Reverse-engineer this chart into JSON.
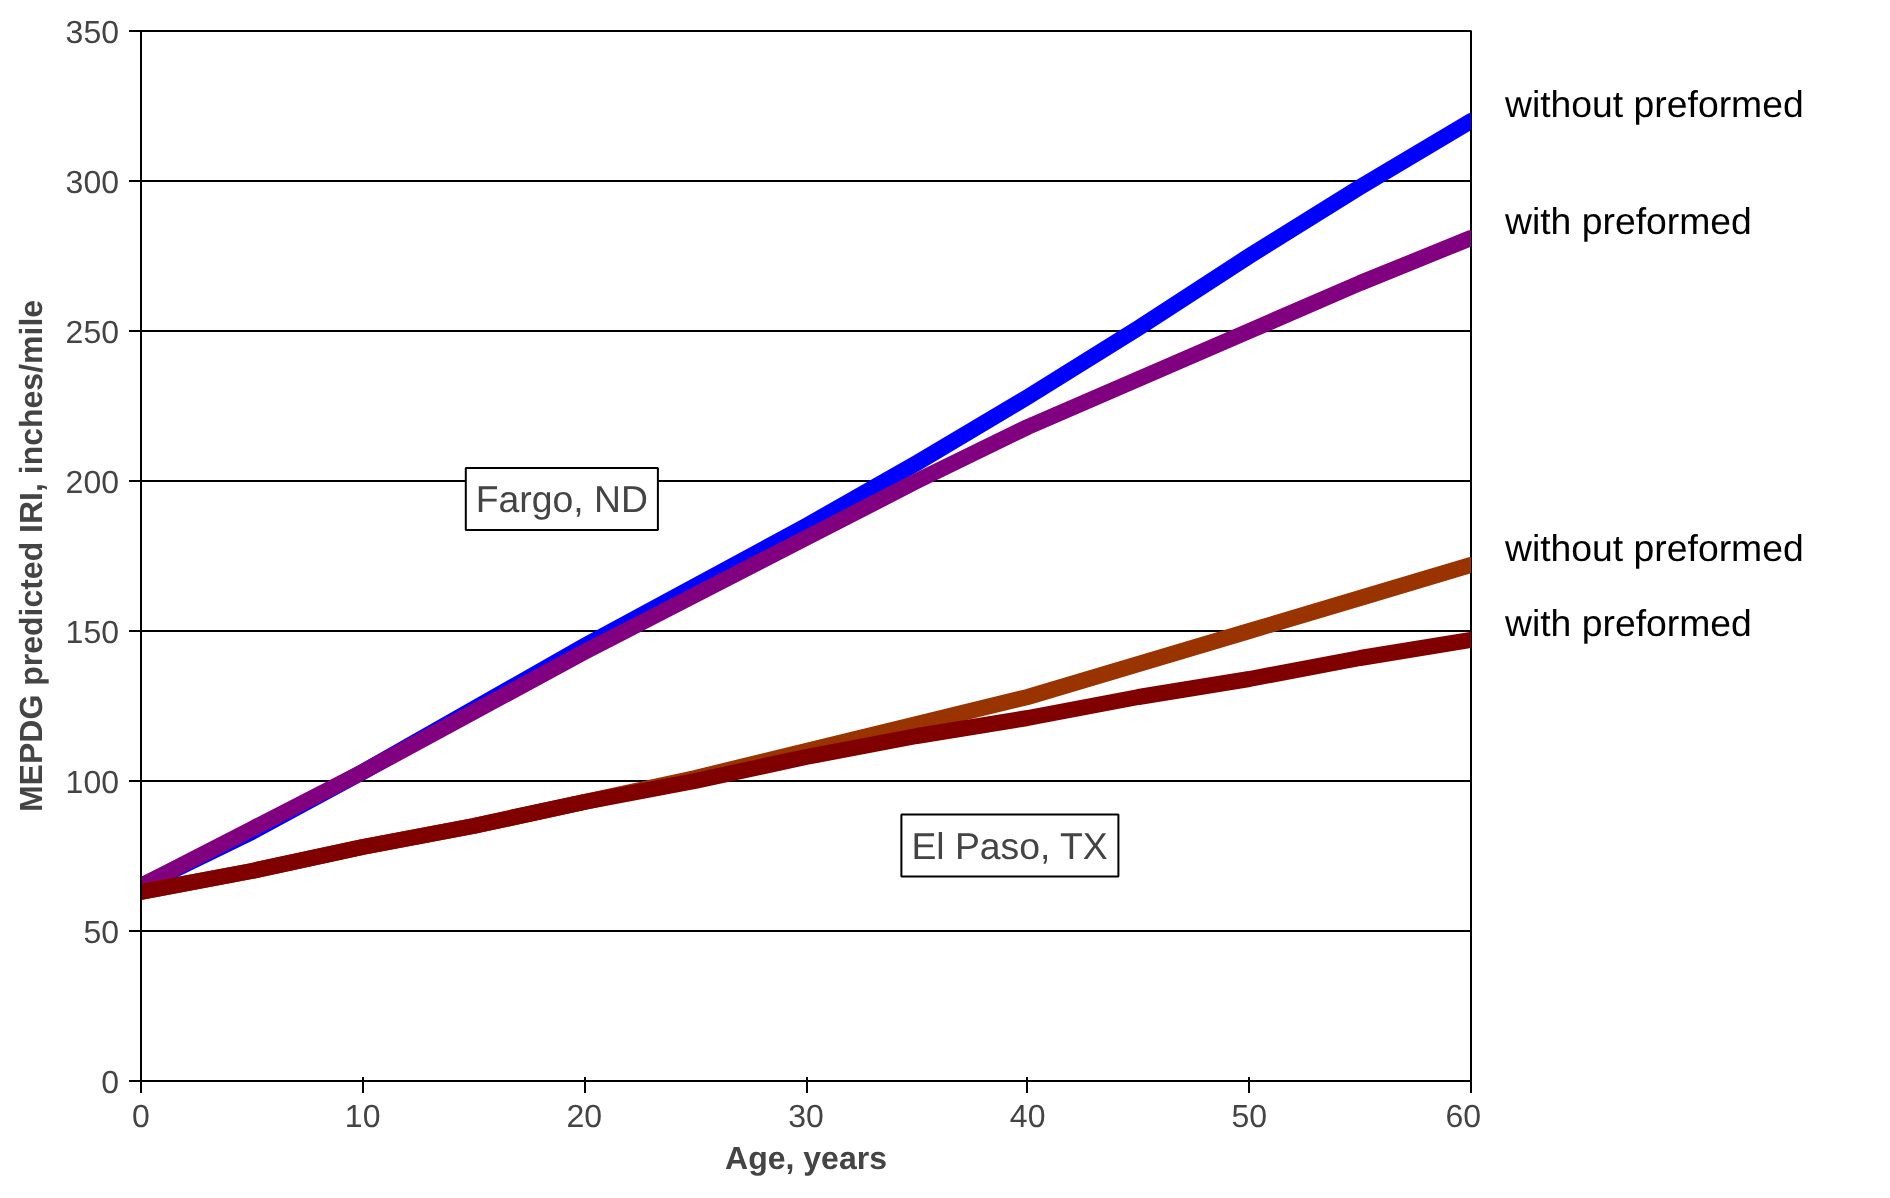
{
  "chart_data": {
    "type": "line",
    "xlabel": "Age, years",
    "ylabel": "MEPDG predicted IRI, inches/mile",
    "x": [
      0,
      5,
      10,
      15,
      20,
      25,
      30,
      35,
      40,
      45,
      50,
      55,
      60
    ],
    "series": [
      {
        "name": "without preformed",
        "color": "#0000ff",
        "values": [
          65,
          83,
          103,
          124,
          145,
          165,
          185,
          206,
          228,
          251,
          275,
          298,
          320
        ]
      },
      {
        "name": "with preformed",
        "color": "#800080",
        "values": [
          65,
          84,
          103,
          123,
          143,
          162,
          181,
          200,
          218,
          234,
          250,
          266,
          281
        ]
      },
      {
        "name": "without preformed",
        "color": "#993300",
        "values": [
          63,
          70,
          78,
          85,
          93,
          101,
          110,
          119,
          128,
          139,
          150,
          161,
          172
        ]
      },
      {
        "name": "with preformed",
        "color": "#800000",
        "values": [
          63,
          70,
          78,
          85,
          93,
          100,
          108,
          115,
          121,
          128,
          134,
          141,
          147
        ]
      }
    ],
    "annotations": [
      "Fargo, ND",
      "El Paso, TX"
    ],
    "xlim": [
      0,
      60
    ],
    "xticks": [
      0,
      10,
      20,
      30,
      40,
      50,
      60
    ],
    "ylim": [
      0,
      350
    ],
    "yticks": [
      0,
      50,
      100,
      150,
      200,
      250,
      300,
      350
    ],
    "grid": "y",
    "marker": "none",
    "line_style": "solid"
  }
}
